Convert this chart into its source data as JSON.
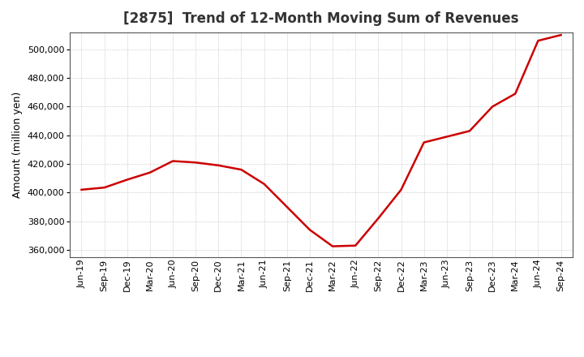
{
  "title": "[2875]  Trend of 12-Month Moving Sum of Revenues",
  "ylabel": "Amount (million yen)",
  "line_color": "#cc0000",
  "background_color": "#ffffff",
  "plot_bg_color": "#ffffff",
  "grid_color": "#999999",
  "ylim": [
    355000,
    512000
  ],
  "yticks": [
    360000,
    380000,
    400000,
    420000,
    440000,
    460000,
    480000,
    500000
  ],
  "x_labels": [
    "Jun-19",
    "Sep-19",
    "Dec-19",
    "Mar-20",
    "Jun-20",
    "Sep-20",
    "Dec-20",
    "Mar-21",
    "Jun-21",
    "Sep-21",
    "Dec-21",
    "Mar-22",
    "Jun-22",
    "Sep-22",
    "Dec-22",
    "Mar-23",
    "Jun-23",
    "Sep-23",
    "Dec-23",
    "Mar-24",
    "Jun-24",
    "Sep-24"
  ],
  "values": [
    402000,
    403500,
    409000,
    414000,
    422000,
    421000,
    419000,
    416000,
    406000,
    390000,
    374000,
    362500,
    363000,
    382000,
    402000,
    435000,
    439000,
    443000,
    460000,
    469000,
    506000,
    510000
  ],
  "title_fontsize": 12,
  "title_fontweight": "bold",
  "ylabel_fontsize": 9,
  "tick_fontsize": 8,
  "linewidth": 1.8
}
